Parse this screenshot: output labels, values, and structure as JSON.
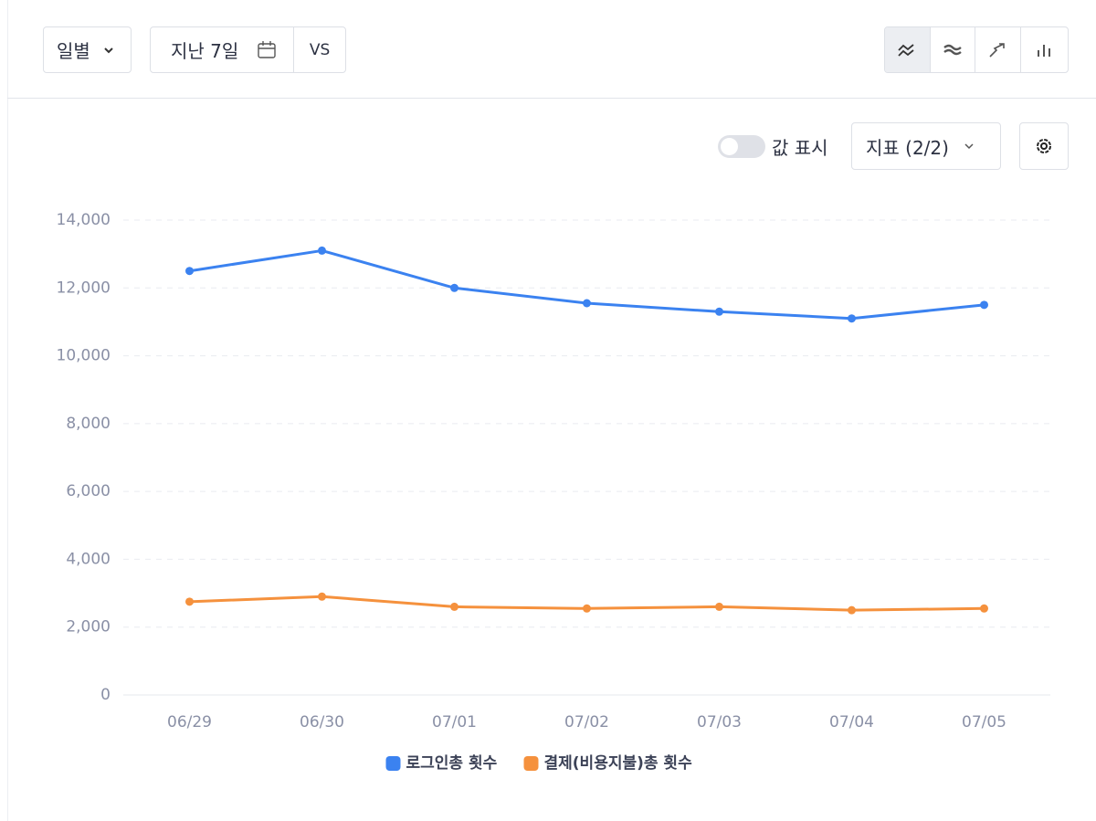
{
  "toolbar": {
    "period": "일별",
    "range": "지난 7일",
    "compare": "VS"
  },
  "controls": {
    "show_values": "값 표시",
    "metrics": "지표 (2/2)"
  },
  "chart_data": {
    "type": "line",
    "categories": [
      "06/29",
      "06/30",
      "07/01",
      "07/02",
      "07/03",
      "07/04",
      "07/05"
    ],
    "series": [
      {
        "name": "로그인총 횟수",
        "color": "#3b82f0",
        "values": [
          12500,
          13100,
          12000,
          11550,
          11300,
          11100,
          11500
        ]
      },
      {
        "name": "결제(비용지불)총 횟수",
        "color": "#f5913d",
        "values": [
          2750,
          2900,
          2600,
          2550,
          2600,
          2500,
          2550
        ]
      }
    ],
    "ylim": [
      0,
      14000
    ],
    "yticks": [
      0,
      {
        "value": 2000,
        "label": "2,000"
      },
      {
        "value": 4000,
        "label": "4,000"
      },
      {
        "value": 6000,
        "label": "6,000"
      },
      {
        "value": 8000,
        "label": "8,000"
      },
      {
        "value": 10000,
        "label": "10,000"
      },
      {
        "value": 12000,
        "label": "12,000"
      },
      {
        "value": 14000,
        "label": "14,000"
      }
    ],
    "grid": true,
    "legend": "bottom"
  }
}
